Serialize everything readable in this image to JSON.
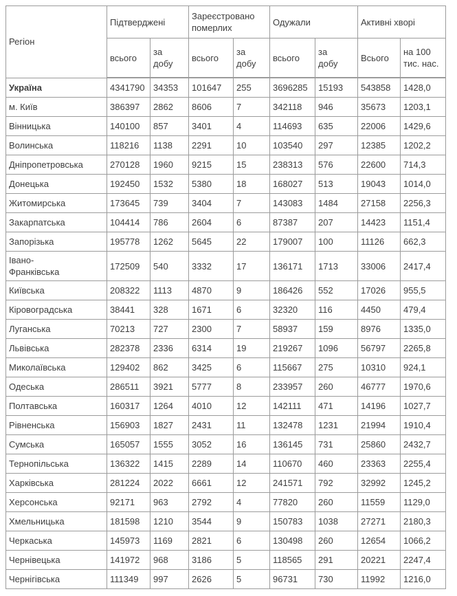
{
  "colors": {
    "border": "#9b9b9b",
    "text": "#3e3e3e",
    "background": "#ffffff"
  },
  "table": {
    "region_header": "Регіон",
    "groups": [
      {
        "label": "Підтверджені",
        "sub": [
          "всього",
          "за\nдобу"
        ]
      },
      {
        "label": "Зареєстровано\nпомерлих",
        "sub": [
          "всього",
          "за\nдобу"
        ]
      },
      {
        "label": "Одужали",
        "sub": [
          "всього",
          "за\nдобу"
        ]
      },
      {
        "label": "Активні хворі",
        "sub": [
          "Всього",
          "на 100\nтис. нас."
        ]
      }
    ],
    "column_keys": [
      "region",
      "confirmed-total",
      "confirmed-day",
      "deaths-total",
      "deaths-day",
      "recovered-total",
      "recovered-day",
      "active-total",
      "active-per-100k"
    ],
    "rows": [
      [
        "Україна",
        "4341790",
        "34353",
        "101647",
        "255",
        "3696285",
        "15193",
        "543858",
        "1428,0"
      ],
      [
        "м. Київ",
        "386397",
        "2862",
        "8606",
        "7",
        "342118",
        "946",
        "35673",
        "1203,1"
      ],
      [
        "Вінницька",
        "140100",
        "857",
        "3401",
        "4",
        "114693",
        "635",
        "22006",
        "1429,6"
      ],
      [
        "Волинська",
        "118216",
        "1138",
        "2291",
        "10",
        "103540",
        "297",
        "12385",
        "1202,2"
      ],
      [
        "Дніпропетровська",
        "270128",
        "1960",
        "9215",
        "15",
        "238313",
        "576",
        "22600",
        "714,3"
      ],
      [
        "Донецька",
        "192450",
        "1532",
        "5380",
        "18",
        "168027",
        "513",
        "19043",
        "1014,0"
      ],
      [
        "Житомирська",
        "173645",
        "739",
        "3404",
        "7",
        "143083",
        "1484",
        "27158",
        "2256,3"
      ],
      [
        "Закарпатська",
        "104414",
        "786",
        "2604",
        "6",
        "87387",
        "207",
        "14423",
        "1151,4"
      ],
      [
        "Запорізька",
        "195778",
        "1262",
        "5645",
        "22",
        "179007",
        "100",
        "11126",
        "662,3"
      ],
      [
        "Івано-\nФранківська",
        "172509",
        "540",
        "3332",
        "17",
        "136171",
        "1713",
        "33006",
        "2417,4"
      ],
      [
        "Київська",
        "208322",
        "1113",
        "4870",
        "9",
        "186426",
        "552",
        "17026",
        "955,5"
      ],
      [
        "Кіровоградська",
        "38441",
        "328",
        "1671",
        "6",
        "32320",
        "116",
        "4450",
        "479,4"
      ],
      [
        "Луганська",
        "70213",
        "727",
        "2300",
        "7",
        "58937",
        "159",
        "8976",
        "1335,0"
      ],
      [
        "Львівська",
        "282378",
        "2336",
        "6314",
        "19",
        "219267",
        "1096",
        "56797",
        "2265,8"
      ],
      [
        "Миколаївська",
        "129402",
        "862",
        "3425",
        "6",
        "115667",
        "275",
        "10310",
        "924,1"
      ],
      [
        "Одеська",
        "286511",
        "3921",
        "5777",
        "8",
        "233957",
        "260",
        "46777",
        "1970,6"
      ],
      [
        "Полтавська",
        "160317",
        "1264",
        "4010",
        "12",
        "142111",
        "471",
        "14196",
        "1027,7"
      ],
      [
        "Рівненська",
        "156903",
        "1827",
        "2431",
        "11",
        "132478",
        "1231",
        "21994",
        "1910,4"
      ],
      [
        "Сумська",
        "165057",
        "1555",
        "3052",
        "16",
        "136145",
        "731",
        "25860",
        "2432,7"
      ],
      [
        "Тернопільська",
        "136322",
        "1415",
        "2289",
        "14",
        "110670",
        "460",
        "23363",
        "2255,4"
      ],
      [
        "Харківська",
        "281224",
        "2022",
        "6661",
        "12",
        "241571",
        "792",
        "32992",
        "1245,2"
      ],
      [
        "Херсонська",
        "92171",
        "963",
        "2792",
        "4",
        "77820",
        "260",
        "11559",
        "1129,0"
      ],
      [
        "Хмельницька",
        "181598",
        "1210",
        "3544",
        "9",
        "150783",
        "1038",
        "27271",
        "2180,3"
      ],
      [
        "Черкаська",
        "145973",
        "1169",
        "2821",
        "6",
        "130498",
        "260",
        "12654",
        "1066,2"
      ],
      [
        "Чернівецька",
        "141972",
        "968",
        "3186",
        "5",
        "118565",
        "291",
        "20221",
        "2247,4"
      ],
      [
        "Чернігівська",
        "111349",
        "997",
        "2626",
        "5",
        "96731",
        "730",
        "11992",
        "1216,0"
      ]
    ]
  }
}
